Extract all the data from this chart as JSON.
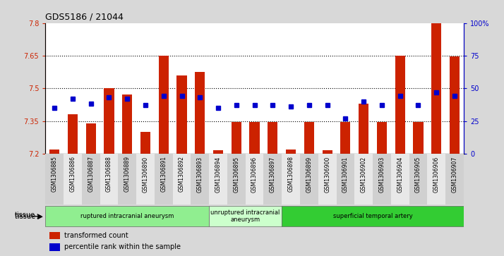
{
  "title": "GDS5186 / 21044",
  "samples": [
    "GSM1306885",
    "GSM1306886",
    "GSM1306887",
    "GSM1306888",
    "GSM1306889",
    "GSM1306890",
    "GSM1306891",
    "GSM1306892",
    "GSM1306893",
    "GSM1306894",
    "GSM1306895",
    "GSM1306896",
    "GSM1306897",
    "GSM1306898",
    "GSM1306899",
    "GSM1306900",
    "GSM1306901",
    "GSM1306902",
    "GSM1306903",
    "GSM1306904",
    "GSM1306905",
    "GSM1306906",
    "GSM1306907"
  ],
  "bar_values": [
    7.22,
    7.38,
    7.34,
    7.5,
    7.47,
    7.3,
    7.65,
    7.56,
    7.575,
    7.215,
    7.345,
    7.345,
    7.345,
    7.22,
    7.345,
    7.215,
    7.345,
    7.43,
    7.345,
    7.65,
    7.345,
    7.8,
    7.645
  ],
  "percentile_values": [
    35,
    42,
    38,
    43,
    42,
    37,
    44,
    44,
    43,
    35,
    37,
    37,
    37,
    36,
    37,
    37,
    27,
    40,
    37,
    44,
    37,
    47,
    44
  ],
  "groups": [
    {
      "label": "ruptured intracranial aneurysm",
      "start": 0,
      "end": 8,
      "color": "#90EE90"
    },
    {
      "label": "unruptured intracranial\naneurysm",
      "start": 9,
      "end": 12,
      "color": "#ccffcc"
    },
    {
      "label": "superficial temporal artery",
      "start": 13,
      "end": 22,
      "color": "#33cc33"
    }
  ],
  "ylim_left": [
    7.2,
    7.8
  ],
  "ylim_right": [
    0,
    100
  ],
  "yticks_left": [
    7.2,
    7.35,
    7.5,
    7.65,
    7.8
  ],
  "yticks_right": [
    0,
    25,
    50,
    75,
    100
  ],
  "bar_color": "#cc2200",
  "dot_color": "#0000cc",
  "bg_color": "#d8d8d8",
  "plot_bg": "#ffffff",
  "legend_bar_label": "transformed count",
  "legend_dot_label": "percentile rank within the sample",
  "tissue_label": "tissue"
}
